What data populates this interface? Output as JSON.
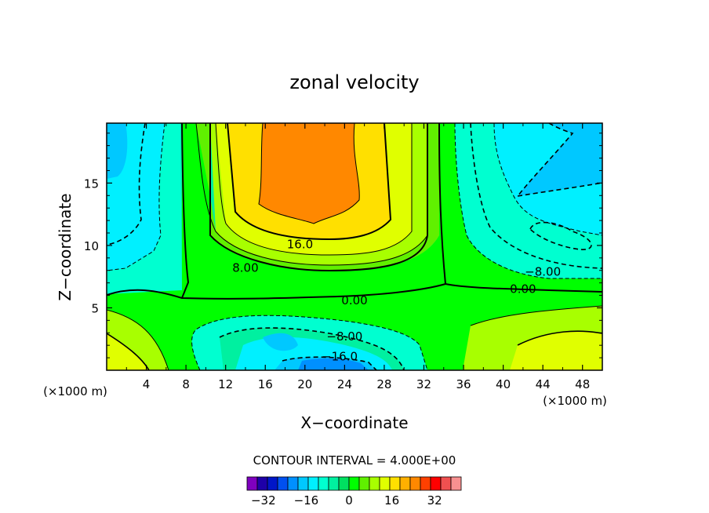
{
  "chart_data": {
    "type": "heatmap",
    "title": "zonal velocity",
    "xlabel": "X−coordinate",
    "ylabel": "Z−coordinate",
    "x_unit_left": "(×1000 m)",
    "x_unit_right": "(×1000 m)",
    "xlim": [
      0,
      50
    ],
    "ylim": [
      0,
      19.8
    ],
    "x_ticks": [
      4,
      8,
      12,
      16,
      20,
      24,
      28,
      32,
      36,
      40,
      44,
      48
    ],
    "x_tick_labels": [
      "4",
      "8",
      "12",
      "16",
      "20",
      "24",
      "28",
      "32",
      "36",
      "40",
      "44",
      "48"
    ],
    "y_ticks": [
      5,
      10,
      15
    ],
    "y_tick_labels": [
      "5",
      "10",
      "15"
    ],
    "contour_interval_text": "CONTOUR INTERVAL = 4.000E+00",
    "contour_interval": 4,
    "contour_labels": [
      {
        "text": "16.0",
        "x": 19.5,
        "z": 10.1
      },
      {
        "text": "8.00",
        "x": 14.0,
        "z": 8.2
      },
      {
        "text": "0.00",
        "x": 25.0,
        "z": 5.6
      },
      {
        "text": "−8.00",
        "x": 24.0,
        "z": 2.7
      },
      {
        "text": "−16.0",
        "x": 23.5,
        "z": 1.1
      },
      {
        "text": "−8.00",
        "x": 44.0,
        "z": 7.9
      },
      {
        "text": "0.00",
        "x": 42.0,
        "z": 6.5
      }
    ],
    "colorbar": {
      "levels": [
        -40,
        -36,
        -32,
        -28,
        -24,
        -20,
        -16,
        -12,
        -8,
        -4,
        0,
        4,
        8,
        12,
        16,
        20,
        24,
        28,
        32,
        36,
        40
      ],
      "colors": [
        "#7f00bf",
        "#1e00a8",
        "#0016c8",
        "#0050f0",
        "#0090ff",
        "#00c8ff",
        "#00f0ff",
        "#00ffd0",
        "#00f0a0",
        "#00e060",
        "#00ff00",
        "#60f000",
        "#a8ff00",
        "#e0ff00",
        "#ffe000",
        "#ffb000",
        "#ff8800",
        "#ff4000",
        "#ff0000",
        "#f05050",
        "#f89090"
      ],
      "tick_values": [
        -32,
        -16,
        0,
        16,
        32
      ],
      "tick_labels": [
        "−32",
        "−16",
        "0",
        "16",
        "32"
      ]
    },
    "field_description_regions": [
      {
        "name": "jet_core",
        "x_range": [
          14,
          26
        ],
        "z_range": [
          11,
          19.8
        ],
        "value": 22
      },
      {
        "name": "reverse_flow_core",
        "x_range": [
          18,
          27
        ],
        "z_range": [
          0,
          1.5
        ],
        "value": -18
      }
    ]
  }
}
